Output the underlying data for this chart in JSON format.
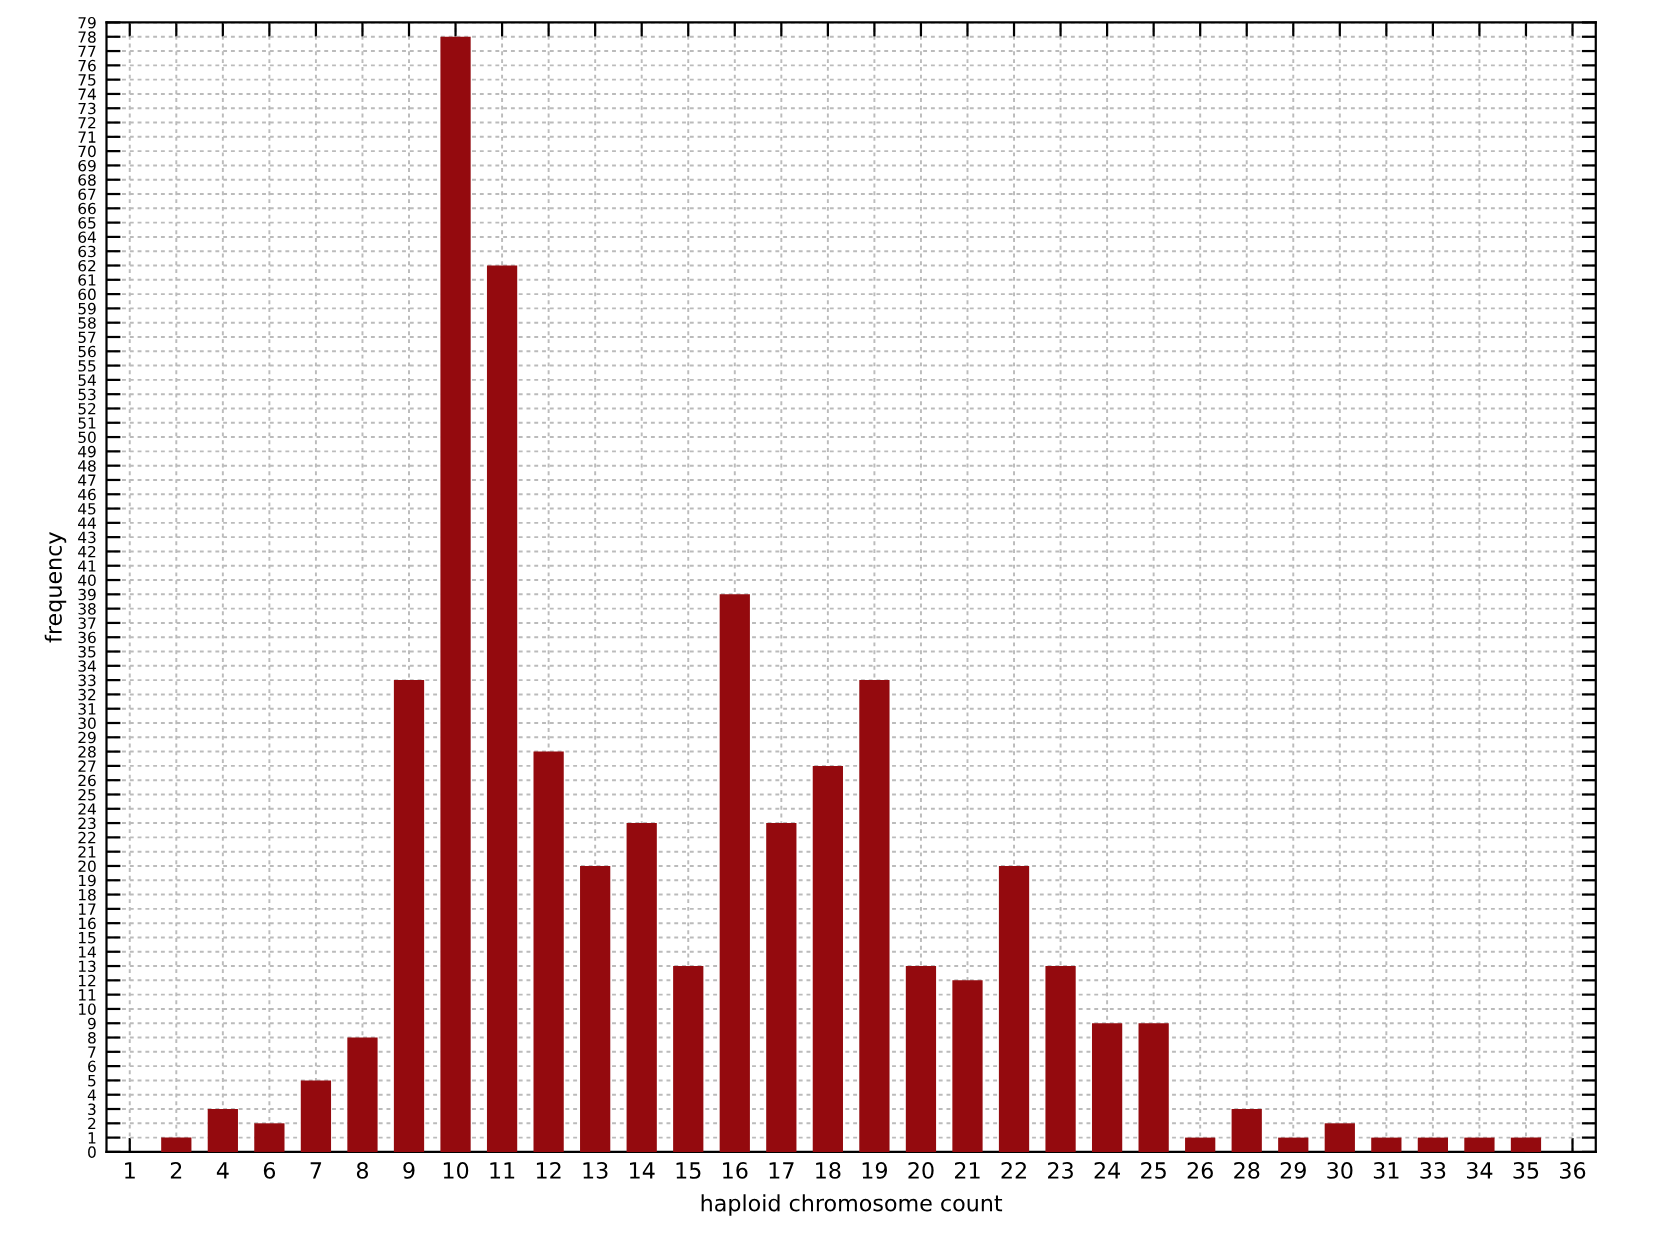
{
  "chart_data": {
    "type": "bar",
    "xlabel": "haploid chromosome count",
    "ylabel": "frequency",
    "categories": [
      "1",
      "2",
      "4",
      "6",
      "7",
      "8",
      "9",
      "10",
      "11",
      "12",
      "13",
      "14",
      "15",
      "16",
      "17",
      "18",
      "19",
      "20",
      "21",
      "22",
      "23",
      "24",
      "25",
      "26",
      "28",
      "29",
      "30",
      "31",
      "33",
      "34",
      "35",
      "36"
    ],
    "values": [
      null,
      1,
      3,
      2,
      5,
      8,
      33,
      78,
      62,
      28,
      20,
      23,
      13,
      39,
      23,
      27,
      33,
      13,
      12,
      20,
      13,
      9,
      9,
      1,
      3,
      1,
      2,
      1,
      1,
      1,
      1,
      null
    ],
    "color": "#940a0e",
    "ylim": [
      0,
      79
    ],
    "yticks": [
      0,
      1,
      2,
      3,
      4,
      5,
      6,
      7,
      8,
      9,
      10,
      11,
      12,
      13,
      14,
      15,
      16,
      17,
      18,
      19,
      20,
      21,
      22,
      23,
      24,
      25,
      26,
      27,
      28,
      29,
      30,
      31,
      32,
      33,
      34,
      35,
      36,
      37,
      38,
      39,
      40,
      41,
      42,
      43,
      44,
      45,
      46,
      47,
      48,
      49,
      50,
      51,
      52,
      53,
      54,
      55,
      56,
      57,
      58,
      59,
      60,
      61,
      62,
      63,
      64,
      65,
      66,
      67,
      68,
      69,
      70,
      71,
      72,
      73,
      74,
      75,
      76,
      77,
      78,
      79
    ],
    "grid": true
  }
}
